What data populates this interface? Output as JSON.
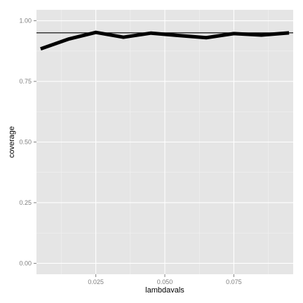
{
  "chart_data": {
    "type": "line",
    "xlabel": "lambdavals",
    "ylabel": "coverage",
    "xlim": [
      0.0035,
      0.0965
    ],
    "ylim": [
      -0.045,
      1.045
    ],
    "x_ticks": [
      {
        "value": 0.025,
        "label": "0.025"
      },
      {
        "value": 0.05,
        "label": "0.050"
      },
      {
        "value": 0.075,
        "label": "0.075"
      }
    ],
    "x_minor_ticks": [
      0.0125,
      0.0375,
      0.0625,
      0.0875
    ],
    "y_ticks": [
      {
        "value": 0.0,
        "label": "0.00"
      },
      {
        "value": 0.25,
        "label": "0.25"
      },
      {
        "value": 0.5,
        "label": "0.50"
      },
      {
        "value": 0.75,
        "label": "0.75"
      },
      {
        "value": 1.0,
        "label": "1.00"
      }
    ],
    "y_minor_ticks": [
      0.125,
      0.375,
      0.625,
      0.875
    ],
    "grid": true,
    "reference_line": {
      "y": 0.95,
      "color": "#000000"
    },
    "series": [
      {
        "color": "#000000",
        "x": [
          0.005,
          0.015,
          0.025,
          0.035,
          0.045,
          0.055,
          0.065,
          0.075,
          0.085,
          0.095
        ],
        "y": [
          0.884,
          0.924,
          0.952,
          0.932,
          0.949,
          0.939,
          0.93,
          0.947,
          0.941,
          0.95
        ]
      }
    ],
    "colors": {
      "panel": "#e5e5e5",
      "grid_major": "#ffffff",
      "grid_minor": "#f2f2f2",
      "tick_text": "#7f7f7f",
      "tick_mark": "#7f7f7f"
    }
  }
}
